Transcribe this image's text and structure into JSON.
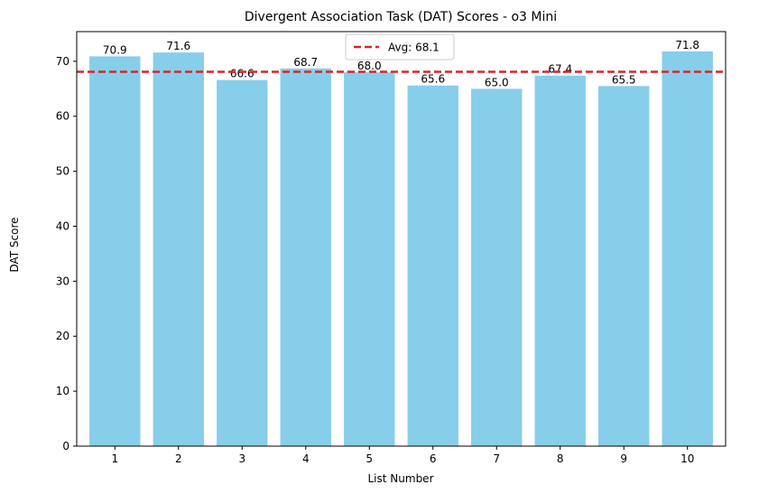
{
  "chart_data": {
    "type": "bar",
    "title": "Divergent Association Task (DAT) Scores - o3 Mini",
    "xlabel": "List Number",
    "ylabel": "DAT Score",
    "categories": [
      "1",
      "2",
      "3",
      "4",
      "5",
      "6",
      "7",
      "8",
      "9",
      "10"
    ],
    "values": [
      70.9,
      71.6,
      66.6,
      68.7,
      68.0,
      65.6,
      65.0,
      67.4,
      65.5,
      71.8
    ],
    "value_labels": [
      "70.9",
      "71.6",
      "66.6",
      "68.7",
      "68.0",
      "65.6",
      "65.0",
      "67.4",
      "65.5",
      "71.8"
    ],
    "ylim": [
      0,
      75.4
    ],
    "yticks": [
      0,
      10,
      20,
      30,
      40,
      50,
      60,
      70
    ],
    "bar_color": "#87ceeb",
    "average": {
      "value": 68.1,
      "label": "Avg: 68.1",
      "color": "#d62728",
      "style": "dashed"
    },
    "legend_position": "upper center",
    "grid": false
  }
}
